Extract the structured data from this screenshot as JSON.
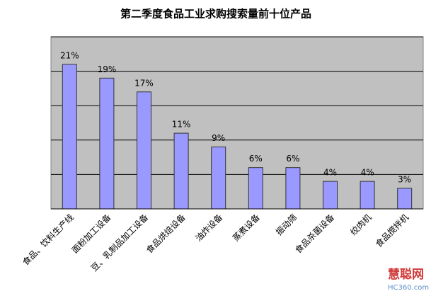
{
  "chart_data": {
    "type": "bar",
    "title": "第二季度食品工业求购搜索量前十位产品",
    "categories": [
      "食品、饮料生产线",
      "面粉加工设备",
      "豆、乳制品加工设备",
      "食品烘焙设备",
      "油炸设备",
      "蒸煮设备",
      "振动筛",
      "食品杀菌设备",
      "绞肉机",
      "食品搅拌机"
    ],
    "values": [
      21,
      19,
      17,
      11,
      9,
      6,
      6,
      4,
      4,
      3
    ],
    "value_labels": [
      "21%",
      "19%",
      "17%",
      "11%",
      "9%",
      "6%",
      "6%",
      "4%",
      "4%",
      "3%"
    ],
    "color": "#9999ff",
    "ylim": [
      0,
      25
    ],
    "yticks": [
      0,
      5,
      10,
      15,
      20,
      25
    ],
    "grid": true
  },
  "watermark": {
    "name": "慧聪网",
    "url": "HC360.com"
  }
}
